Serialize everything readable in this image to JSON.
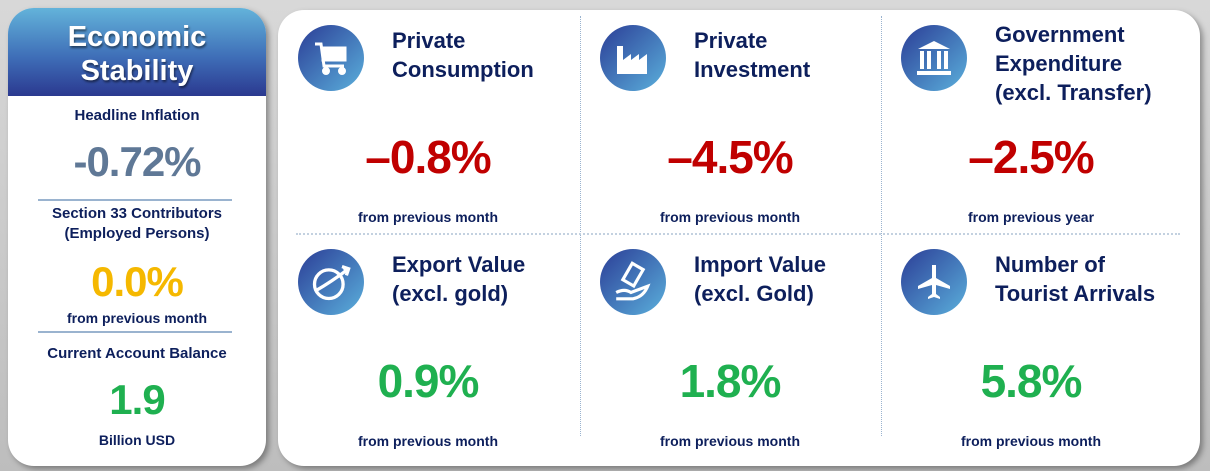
{
  "left": {
    "title_line1": "Economic",
    "title_line2": "Stability",
    "inflation_label": "Headline Inflation",
    "inflation_value": "-0.72%",
    "s33_label_line1": "Section 33 Contributors",
    "s33_label_line2": "(Employed Persons)",
    "s33_value": "0.0%",
    "s33_note": "from previous month",
    "ca_label": "Current Account Balance",
    "ca_value": "1.9",
    "ca_unit": "Billion USD"
  },
  "colors": {
    "red": "#c00000",
    "green": "#1fb050",
    "yellow": "#f5b800",
    "grey": "#5f7896",
    "navy": "#0d1f5c"
  },
  "cards": [
    {
      "title1": "Private",
      "title2": "Consumption",
      "title3": "",
      "value": "–0.8%",
      "note": "from previous month",
      "icon": "shopping-cart-icon"
    },
    {
      "title1": "Private",
      "title2": "Investment",
      "title3": "",
      "value": "–4.5%",
      "note": "from previous month",
      "icon": "factory-icon"
    },
    {
      "title1": "Government",
      "title2": "Expenditure",
      "title3": "(excl. Transfer)",
      "value": "–2.5%",
      "note": "from previous year",
      "icon": "government-building-icon"
    },
    {
      "title1": "Export Value",
      "title2": "(excl. gold)",
      "title3": "",
      "value": "0.9%",
      "note": "from previous month",
      "icon": "globe-plane-icon"
    },
    {
      "title1": "Import Value",
      "title2": "(excl. Gold)",
      "title3": "",
      "value": "1.8%",
      "note": "from previous month",
      "icon": "money-hand-icon"
    },
    {
      "title1": "Number of",
      "title2": "Tourist Arrivals",
      "title3": "",
      "value": "5.8%",
      "note": "from previous month",
      "icon": "airplane-icon"
    }
  ]
}
